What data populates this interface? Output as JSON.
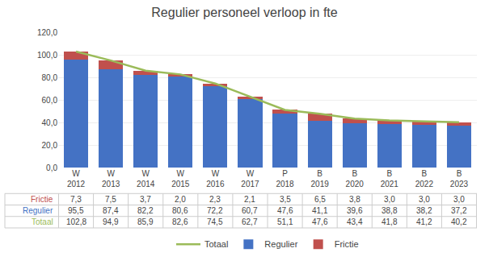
{
  "chart_data": {
    "type": "bar",
    "title": "Regulier personeel verloop in fte",
    "stacked": true,
    "categories": [
      "W\n2012",
      "W\n2013",
      "W\n2014",
      "W\n2015",
      "W\n2016",
      "W\n2017",
      "P\n2018",
      "B\n2019",
      "B\n2020",
      "B\n2021",
      "B\n2022",
      "B\n2023"
    ],
    "series": [
      {
        "name": "Frictie",
        "type": "bar",
        "color": "#C0504D",
        "values": [
          7.3,
          7.5,
          3.7,
          2.0,
          2.3,
          2.1,
          3.5,
          6.5,
          3.8,
          3.0,
          3.0,
          3.0
        ],
        "value_labels": [
          "7,3",
          "7,5",
          "3,7",
          "2,0",
          "2,3",
          "2,1",
          "3,5",
          "6,5",
          "3,8",
          "3,0",
          "3,0",
          "3,0"
        ]
      },
      {
        "name": "Regulier",
        "type": "bar",
        "color": "#4472C4",
        "values": [
          95.5,
          87.4,
          82.2,
          80.6,
          72.2,
          60.7,
          47.6,
          41.1,
          39.6,
          38.8,
          38.2,
          37.2
        ],
        "value_labels": [
          "95,5",
          "87,4",
          "82,2",
          "80,6",
          "72,2",
          "60,7",
          "47,6",
          "41,1",
          "39,6",
          "38,8",
          "38,2",
          "37,2"
        ]
      },
      {
        "name": "Totaal",
        "type": "line",
        "color": "#9BBB59",
        "values": [
          102.8,
          94.9,
          85.9,
          82.6,
          74.5,
          62.7,
          51.1,
          47.6,
          43.4,
          41.8,
          41.2,
          40.2
        ],
        "value_labels": [
          "102,8",
          "94,9",
          "85,9",
          "82,6",
          "74,5",
          "62,7",
          "51,1",
          "47,6",
          "43,4",
          "41,8",
          "41,2",
          "40,2"
        ]
      }
    ],
    "ylim": [
      0,
      120
    ],
    "yticks": [
      {
        "value": 0,
        "label": "0,0"
      },
      {
        "value": 20,
        "label": "20,0"
      },
      {
        "value": 40,
        "label": "40,0"
      },
      {
        "value": 60,
        "label": "60,0"
      },
      {
        "value": 80,
        "label": "80,0"
      },
      {
        "value": 100,
        "label": "100,0"
      },
      {
        "value": 120,
        "label": "120,0"
      }
    ],
    "grid": true,
    "legend": "bottom"
  }
}
